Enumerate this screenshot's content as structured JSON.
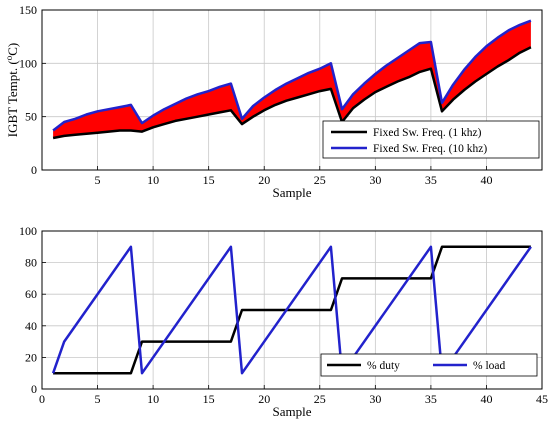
{
  "chart_data": [
    {
      "type": "area",
      "xlabel": "Sample",
      "ylabel_main": "IGBT Tempt. (",
      "ylabel_sup": "o",
      "ylabel_tail": "C)",
      "xlim": [
        0,
        45
      ],
      "ylim": [
        0,
        150
      ],
      "xticks": [
        5,
        10,
        15,
        20,
        25,
        30,
        35,
        40
      ],
      "yticks": [
        0,
        50,
        100,
        150
      ],
      "grid": true,
      "legend_position": "bottom-right",
      "fill_color": "#ff0000",
      "x": [
        1,
        2,
        3,
        4,
        5,
        6,
        7,
        8,
        9,
        10,
        11,
        12,
        13,
        14,
        15,
        16,
        17,
        18,
        19,
        20,
        21,
        22,
        23,
        24,
        25,
        26,
        27,
        28,
        29,
        30,
        31,
        32,
        33,
        34,
        35,
        36,
        37,
        38,
        39,
        40,
        41,
        42,
        43,
        44
      ],
      "series": [
        {
          "name": "Fixed Sw. Freq. (1 khz)",
          "color": "#000000",
          "values": [
            30,
            32,
            33,
            34,
            35,
            36,
            37,
            37,
            36,
            40,
            43,
            46,
            48,
            50,
            52,
            54,
            56,
            43,
            50,
            56,
            61,
            65,
            68,
            71,
            74,
            76,
            45,
            58,
            66,
            73,
            78,
            83,
            87,
            92,
            95,
            55,
            66,
            75,
            83,
            90,
            97,
            103,
            110,
            115
          ]
        },
        {
          "name": "Fixed Sw. Freq. (10 khz)",
          "color": "#2222cc",
          "values": [
            37,
            45,
            48,
            52,
            55,
            57,
            59,
            61,
            44,
            51,
            57,
            62,
            67,
            71,
            74,
            78,
            81,
            48,
            60,
            68,
            75,
            81,
            86,
            91,
            95,
            100,
            57,
            71,
            81,
            90,
            98,
            105,
            112,
            119,
            120,
            63,
            80,
            94,
            106,
            116,
            124,
            131,
            136,
            140
          ]
        }
      ]
    },
    {
      "type": "line",
      "xlabel": "Sample",
      "xlim": [
        0,
        45
      ],
      "ylim": [
        0,
        100
      ],
      "xticks": [
        0,
        5,
        10,
        15,
        20,
        25,
        30,
        35,
        40,
        45
      ],
      "yticks": [
        0,
        20,
        40,
        60,
        80,
        100
      ],
      "grid": true,
      "legend_position": "bottom-right",
      "series": [
        {
          "name": "% duty",
          "color": "#000000",
          "x": [
            1,
            8,
            9,
            17,
            18,
            26,
            27,
            35,
            36,
            44
          ],
          "values": [
            10,
            10,
            30,
            30,
            50,
            50,
            70,
            70,
            90,
            90
          ]
        },
        {
          "name": "% load",
          "color": "#2222cc",
          "x": [
            1,
            2,
            8,
            9,
            17,
            18,
            26,
            27,
            35,
            36,
            44
          ],
          "values": [
            10,
            30,
            90,
            10,
            90,
            10,
            90,
            10,
            90,
            10,
            90
          ]
        }
      ]
    }
  ]
}
